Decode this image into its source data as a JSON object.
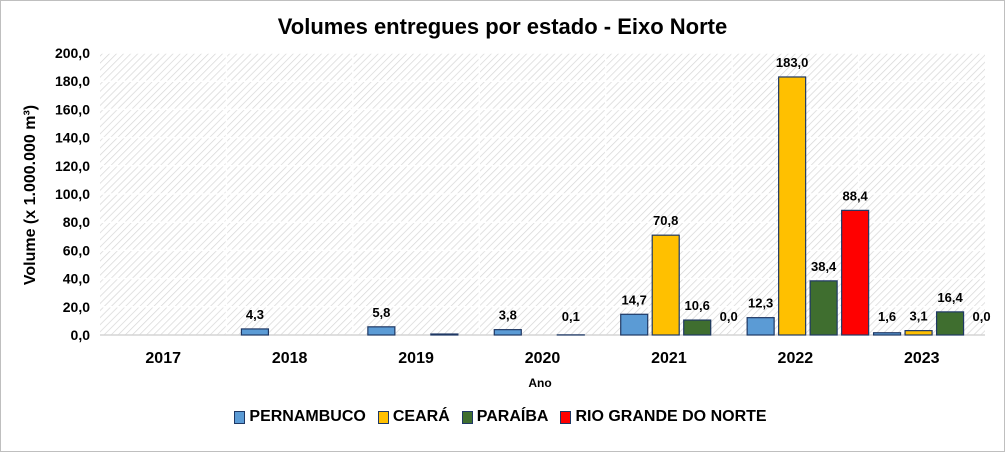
{
  "chart_data": {
    "type": "bar",
    "title": "Volumes entregues por estado - Eixo Norte",
    "xlabel": "Ano",
    "ylabel": "Volume (x 1.000.000 m³)",
    "ylim": [
      0,
      200
    ],
    "ytick_step": 20,
    "ytick_labels": [
      "0,0",
      "20,0",
      "40,0",
      "60,0",
      "80,0",
      "100,0",
      "120,0",
      "140,0",
      "160,0",
      "180,0",
      "200,0"
    ],
    "categories": [
      "2017",
      "2018",
      "2019",
      "2020",
      "2021",
      "2022",
      "2023"
    ],
    "series": [
      {
        "name": "PERNAMBUCO",
        "color": "#5b9bd5",
        "values": [
          0,
          4.3,
          5.8,
          3.8,
          14.7,
          12.3,
          1.6
        ],
        "labels": [
          "",
          "4,3",
          "5,8",
          "3,8",
          "14,7",
          "12,3",
          "1,6"
        ]
      },
      {
        "name": "CEARÁ",
        "color": "#ffc000",
        "values": [
          0,
          0,
          0,
          0,
          70.8,
          183.0,
          3.1
        ],
        "labels": [
          "",
          "",
          "",
          "",
          "70,8",
          "183,0",
          "3,1"
        ]
      },
      {
        "name": "PARAÍBA",
        "color": "#3f6e2f",
        "values": [
          0,
          0,
          0.7,
          0.1,
          10.6,
          38.4,
          16.4
        ],
        "labels": [
          "",
          "",
          "",
          "0,1",
          "10,6",
          "38,4",
          "16,4"
        ]
      },
      {
        "name": "RIO GRANDE DO NORTE",
        "color": "#ff0000",
        "values": [
          0,
          0,
          0,
          0,
          0,
          88.4,
          0
        ],
        "labels": [
          "",
          "",
          "",
          "",
          "0,0",
          "88,4",
          "0,0"
        ]
      }
    ],
    "grid": true,
    "legend_position": "bottom"
  }
}
